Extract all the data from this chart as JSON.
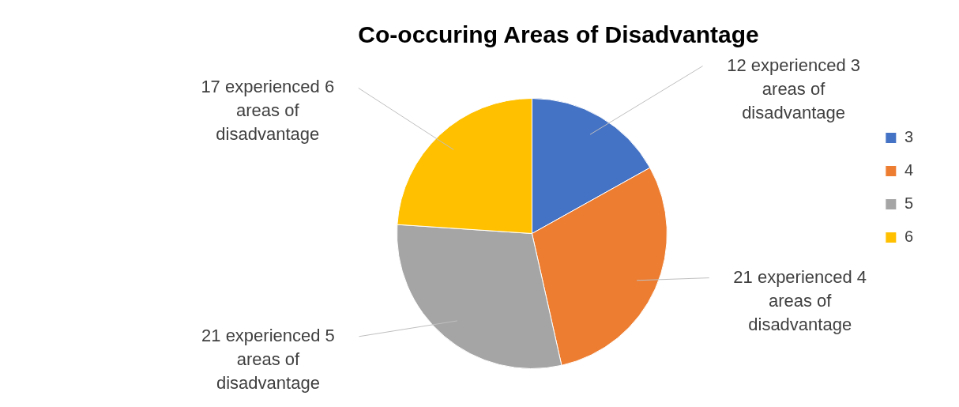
{
  "chart_data": {
    "type": "pie",
    "title": "Co-occuring Areas of Disadvantage",
    "categories": [
      "3",
      "4",
      "5",
      "6"
    ],
    "values": [
      12,
      21,
      21,
      17
    ],
    "colors": [
      "#4472c4",
      "#ed7d31",
      "#a5a5a5",
      "#ffc000"
    ],
    "value_labels": [
      "12 experienced 3 areas of disadvantage",
      "21 experienced 4 areas of disadvantage",
      "21 experienced 5 areas of disadvantage",
      "17 experienced 6 areas of disadvantage"
    ],
    "legend": "right"
  }
}
